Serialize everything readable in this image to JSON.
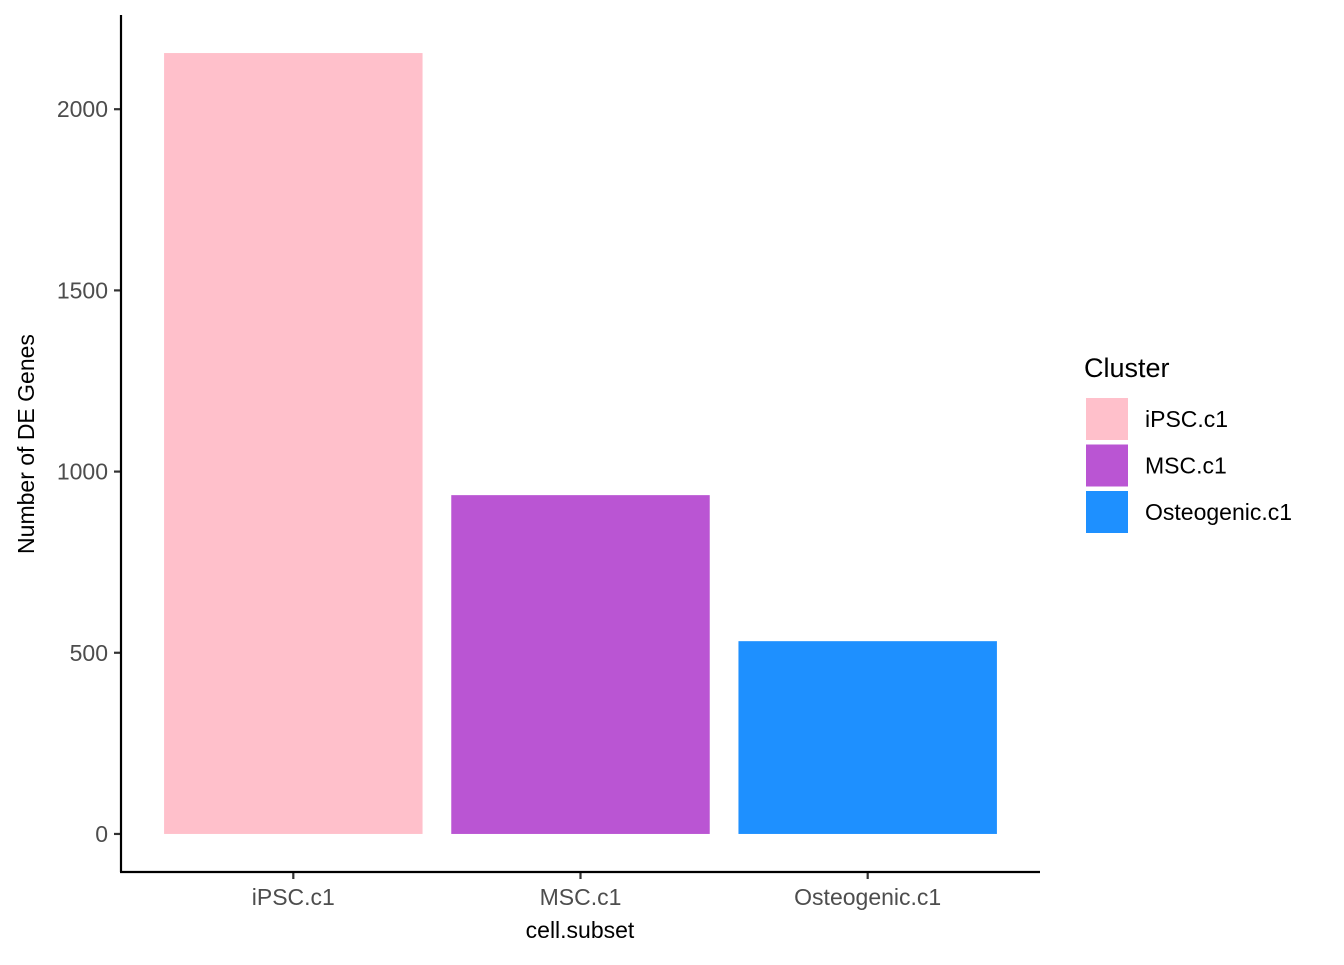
{
  "chart_data": {
    "type": "bar",
    "categories": [
      "iPSC.c1",
      "MSC.c1",
      "Osteogenic.c1"
    ],
    "values": [
      2155,
      935,
      532
    ],
    "colors": [
      "#FFC0CB",
      "#BA55D3",
      "#1E90FF"
    ],
    "xlabel": "cell.subset",
    "ylabel": "Number of DE Genes",
    "ylim": [
      -105,
      2260
    ],
    "yticks": [
      0,
      500,
      1000,
      1500,
      2000
    ],
    "grid": false,
    "legend": {
      "title": "Cluster",
      "position": "right",
      "entries": [
        "iPSC.c1",
        "MSC.c1",
        "Osteogenic.c1"
      ]
    }
  }
}
